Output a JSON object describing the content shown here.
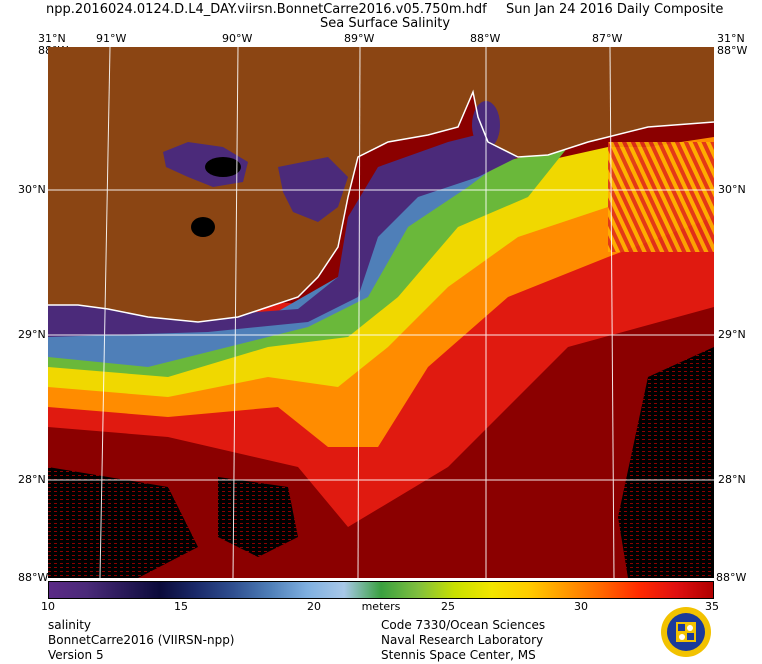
{
  "header": {
    "filename": "npp.2016024.0124.D.L4_DAY.viirsn.BonnetCarre2016.v05.750m.hdf",
    "date": "Sun Jan 24 2016 Daily Composite",
    "product": "Sea Surface Salinity"
  },
  "map": {
    "lon_labels": [
      "91°W",
      "90°W",
      "89°W",
      "88°W",
      "87°W"
    ],
    "lat_labels": [
      "30°N",
      "29°N",
      "28°N"
    ],
    "corner_labels": {
      "top_left": "31°N",
      "top_right": "31°N",
      "top_left_lon": "88°W",
      "top_right_lon": "88°W",
      "bottom_left": "88°W",
      "bottom_right": "88°W"
    },
    "colors": {
      "land": "#8b4513",
      "high_salinity": "#8b0000",
      "cloud": "#000000",
      "coastline": "#ffffff"
    }
  },
  "colorbar": {
    "min": 10,
    "max": 35,
    "units": "meters",
    "ticks": [
      "10",
      "15",
      "20",
      "25",
      "30",
      "35"
    ]
  },
  "footer": {
    "left": [
      "salinity",
      "BonnetCarre2016 (VIIRSN-npp)",
      "Version 5"
    ],
    "right": [
      "Code 7330/Ocean Sciences",
      "Naval Research Laboratory",
      "Stennis Space Center, MS"
    ]
  }
}
